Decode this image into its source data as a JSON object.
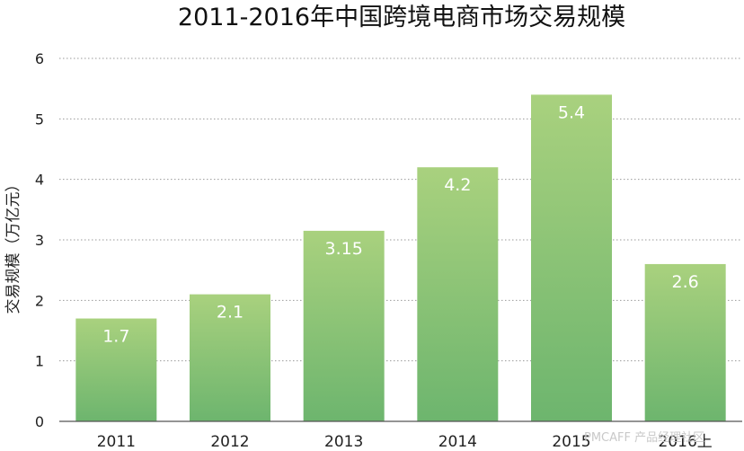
{
  "chart_data": {
    "type": "bar",
    "title": "2011-2016年中国跨境电商市场交易规模",
    "ylabel": "交易规模（万亿元）",
    "xlabel": "",
    "categories": [
      "2011",
      "2012",
      "2013",
      "2014",
      "2015",
      "2016上"
    ],
    "values": [
      1.7,
      2.1,
      3.15,
      4.2,
      5.4,
      2.6
    ],
    "data_labels": [
      "1.7",
      "2.1",
      "3.15",
      "4.2",
      "5.4",
      "2.6"
    ],
    "ylim": [
      0,
      6
    ],
    "yticks": [
      0,
      1,
      2,
      3,
      4,
      5,
      6
    ],
    "grid": true,
    "legend": "none",
    "colors": {
      "bar_top": "#a9d17e",
      "bar_bottom": "#6db56e",
      "label": "#ffffff"
    }
  },
  "watermark": "PMCAFF 产品经理社区"
}
